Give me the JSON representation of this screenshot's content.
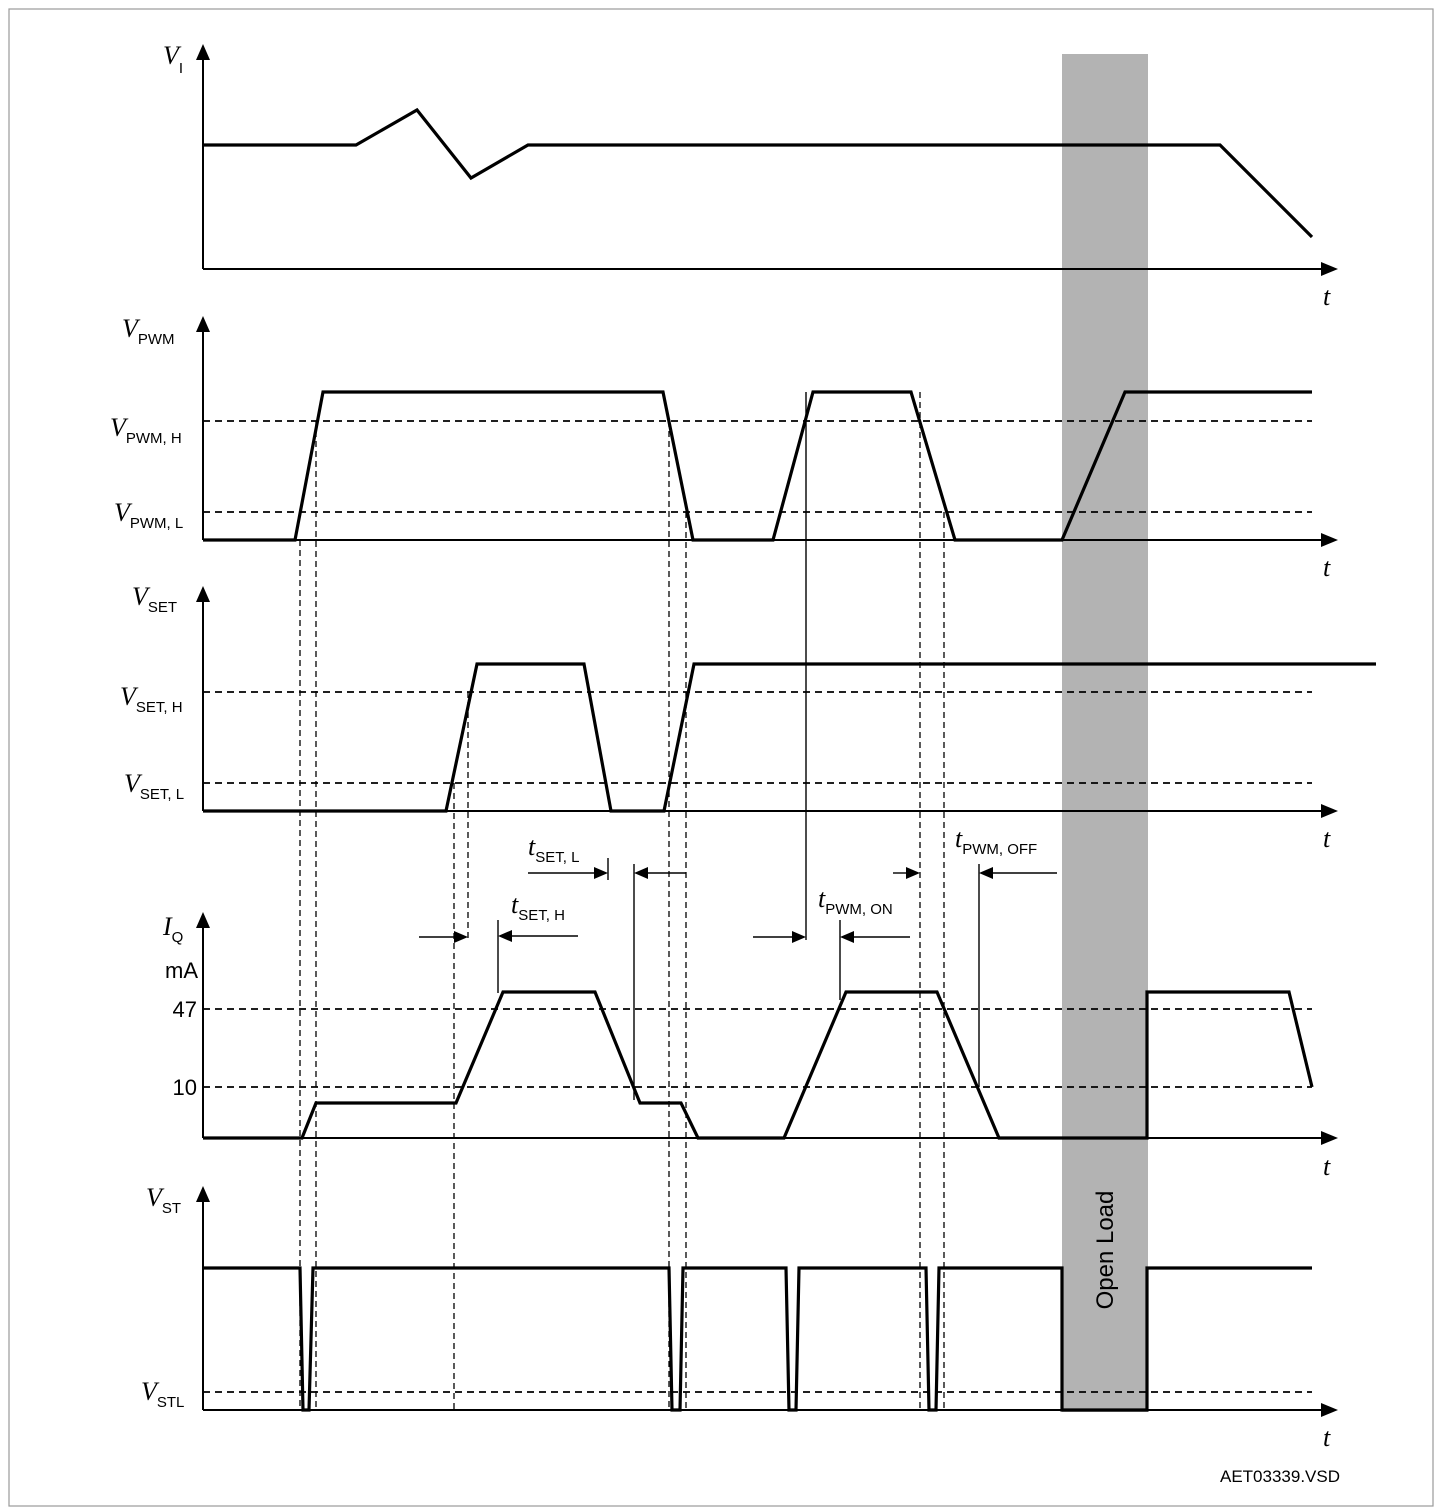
{
  "signals": {
    "vi": {
      "main": "V",
      "sub": "I"
    },
    "vpwm": {
      "main": "V",
      "sub": "PWM"
    },
    "vset": {
      "main": "V",
      "sub": "SET"
    },
    "iq": {
      "main": "I",
      "sub": "Q",
      "unit": "mA"
    },
    "vst": {
      "main": "V",
      "sub": "ST"
    }
  },
  "levels": {
    "vpwm_h": {
      "main": "V",
      "sub": "PWM, H"
    },
    "vpwm_l": {
      "main": "V",
      "sub": "PWM, L"
    },
    "vset_h": {
      "main": "V",
      "sub": "SET, H"
    },
    "vset_l": {
      "main": "V",
      "sub": "SET, L"
    },
    "iq_47": "47",
    "iq_10": "10",
    "vstl": {
      "main": "V",
      "sub": "STL"
    }
  },
  "time_axis_label": "t",
  "timings": {
    "tset_l": {
      "main": "t",
      "sub": "SET, L"
    },
    "tset_h": {
      "main": "t",
      "sub": "SET, H"
    },
    "tpwm_on": {
      "main": "t",
      "sub": "PWM, ON"
    },
    "tpwm_off": {
      "main": "t",
      "sub": "PWM, OFF"
    }
  },
  "open_load_label": "Open Load",
  "footer_id": "AET03339.VSD",
  "colors": {
    "open_load_band": "#b3b3b3",
    "trace": "#000000",
    "frame": "#9a9a9a"
  }
}
